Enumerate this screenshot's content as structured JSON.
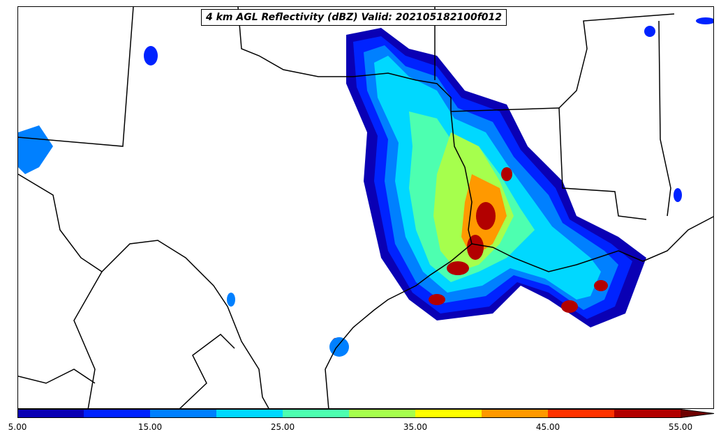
{
  "title": "4 km AGL Reflectivity (dBZ) Valid: 202105182100f012",
  "colorbar": {
    "tick_labels": [
      "5.00",
      "15.00",
      "25.00",
      "35.00",
      "45.00",
      "55.00"
    ],
    "colors": [
      "#0a00b4",
      "#0023ff",
      "#0080ff",
      "#00d8ff",
      "#4dffb0",
      "#a6ff4d",
      "#ffff00",
      "#ff9900",
      "#ff3300",
      "#b20000",
      "#6e0000"
    ],
    "extend": "max"
  }
}
